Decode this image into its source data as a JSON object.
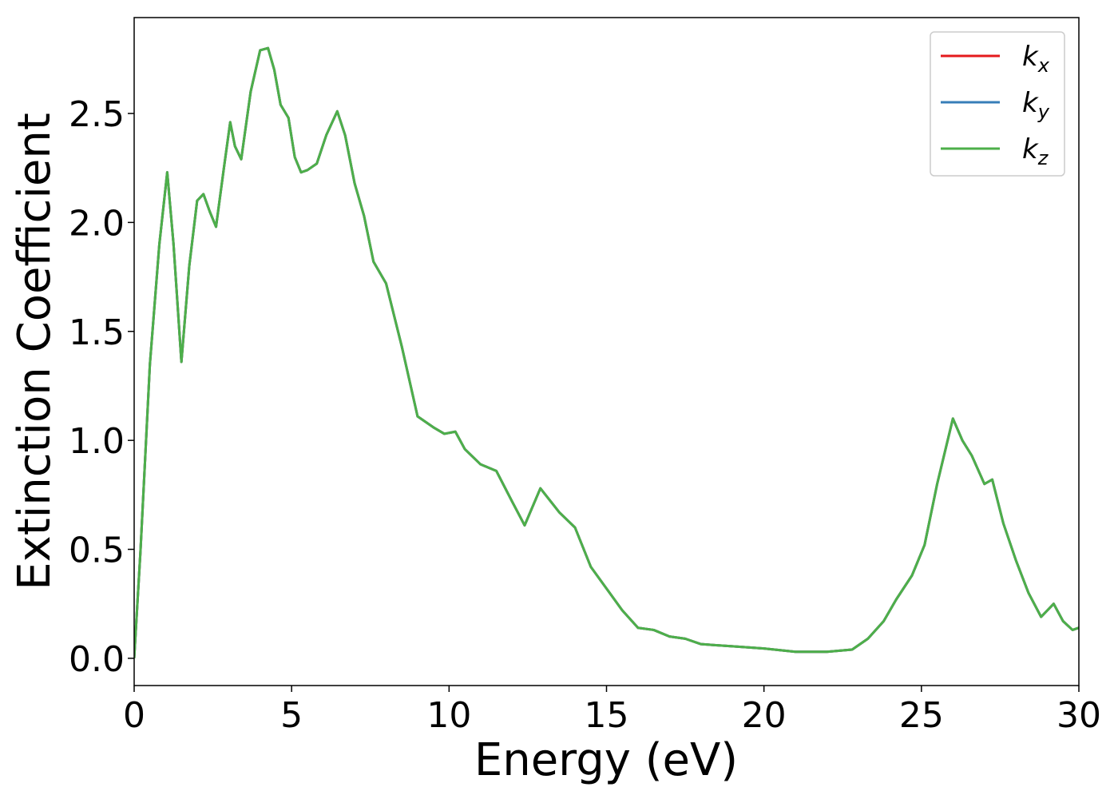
{
  "chart_data": {
    "type": "line",
    "xlabel": "Energy (eV)",
    "ylabel": "Extinction Coefficient",
    "x": [
      0,
      0.2,
      0.5,
      0.8,
      1.05,
      1.25,
      1.5,
      1.75,
      2.0,
      2.2,
      2.4,
      2.6,
      2.85,
      3.05,
      3.2,
      3.4,
      3.7,
      4.0,
      4.25,
      4.45,
      4.65,
      4.9,
      5.1,
      5.3,
      5.5,
      5.8,
      6.1,
      6.45,
      6.7,
      7.0,
      7.3,
      7.6,
      8.0,
      8.5,
      9.0,
      9.5,
      9.85,
      10.2,
      10.5,
      11.0,
      11.5,
      12.0,
      12.4,
      12.9,
      13.5,
      14.0,
      14.5,
      15.0,
      15.5,
      16.0,
      16.5,
      17.0,
      17.5,
      18.0,
      19.0,
      20.0,
      21.0,
      22.0,
      22.8,
      23.3,
      23.8,
      24.2,
      24.7,
      25.1,
      25.5,
      26.0,
      26.3,
      26.6,
      27.0,
      27.25,
      27.6,
      28.0,
      28.4,
      28.8,
      29.2,
      29.5,
      29.8,
      30
    ],
    "series": [
      {
        "name": "kx",
        "color": "#e41a1c",
        "values": [
          0,
          0.49,
          1.35,
          1.9,
          2.23,
          1.9,
          1.36,
          1.8,
          2.1,
          2.13,
          2.05,
          1.98,
          2.25,
          2.46,
          2.35,
          2.29,
          2.6,
          2.79,
          2.8,
          2.7,
          2.54,
          2.48,
          2.3,
          2.23,
          2.24,
          2.27,
          2.4,
          2.51,
          2.4,
          2.18,
          2.03,
          1.82,
          1.72,
          1.43,
          1.11,
          1.06,
          1.03,
          1.04,
          0.96,
          0.89,
          0.86,
          0.72,
          0.61,
          0.78,
          0.67,
          0.6,
          0.42,
          0.32,
          0.22,
          0.14,
          0.13,
          0.1,
          0.09,
          0.065,
          0.055,
          0.045,
          0.03,
          0.03,
          0.04,
          0.09,
          0.17,
          0.27,
          0.38,
          0.52,
          0.8,
          1.1,
          1.0,
          0.93,
          0.8,
          0.82,
          0.62,
          0.45,
          0.3,
          0.19,
          0.25,
          0.17,
          0.13,
          0.14
        ]
      },
      {
        "name": "ky",
        "color": "#377eb8",
        "values": [
          0,
          0.49,
          1.35,
          1.9,
          2.23,
          1.9,
          1.36,
          1.8,
          2.1,
          2.13,
          2.05,
          1.98,
          2.25,
          2.46,
          2.35,
          2.29,
          2.6,
          2.79,
          2.8,
          2.7,
          2.54,
          2.48,
          2.3,
          2.23,
          2.24,
          2.27,
          2.4,
          2.51,
          2.4,
          2.18,
          2.03,
          1.82,
          1.72,
          1.43,
          1.11,
          1.06,
          1.03,
          1.04,
          0.96,
          0.89,
          0.86,
          0.72,
          0.61,
          0.78,
          0.67,
          0.6,
          0.42,
          0.32,
          0.22,
          0.14,
          0.13,
          0.1,
          0.09,
          0.065,
          0.055,
          0.045,
          0.03,
          0.03,
          0.04,
          0.09,
          0.17,
          0.27,
          0.38,
          0.52,
          0.8,
          1.1,
          1.0,
          0.93,
          0.8,
          0.82,
          0.62,
          0.45,
          0.3,
          0.19,
          0.25,
          0.17,
          0.13,
          0.14
        ]
      },
      {
        "name": "kz",
        "color": "#4daf4a",
        "values": [
          0,
          0.49,
          1.35,
          1.9,
          2.23,
          1.9,
          1.36,
          1.8,
          2.1,
          2.13,
          2.05,
          1.98,
          2.25,
          2.46,
          2.35,
          2.29,
          2.6,
          2.79,
          2.8,
          2.7,
          2.54,
          2.48,
          2.3,
          2.23,
          2.24,
          2.27,
          2.4,
          2.51,
          2.4,
          2.18,
          2.03,
          1.82,
          1.72,
          1.43,
          1.11,
          1.06,
          1.03,
          1.04,
          0.96,
          0.89,
          0.86,
          0.72,
          0.61,
          0.78,
          0.67,
          0.6,
          0.42,
          0.32,
          0.22,
          0.14,
          0.13,
          0.1,
          0.09,
          0.065,
          0.055,
          0.045,
          0.03,
          0.03,
          0.04,
          0.09,
          0.17,
          0.27,
          0.38,
          0.52,
          0.8,
          1.1,
          1.0,
          0.93,
          0.8,
          0.82,
          0.62,
          0.45,
          0.3,
          0.19,
          0.25,
          0.17,
          0.13,
          0.14
        ]
      }
    ],
    "xlim": [
      0,
      30
    ],
    "xticks": [
      0,
      5,
      10,
      15,
      20,
      25,
      30
    ],
    "ylim": [
      -0.125,
      2.94
    ],
    "yticks": [
      {
        "value": 0,
        "label": "0.0"
      },
      0.5,
      {
        "value": 1,
        "label": "1.0"
      },
      1.5,
      {
        "value": 2,
        "label": "2.0"
      },
      2.5
    ],
    "legend": "upper right"
  }
}
